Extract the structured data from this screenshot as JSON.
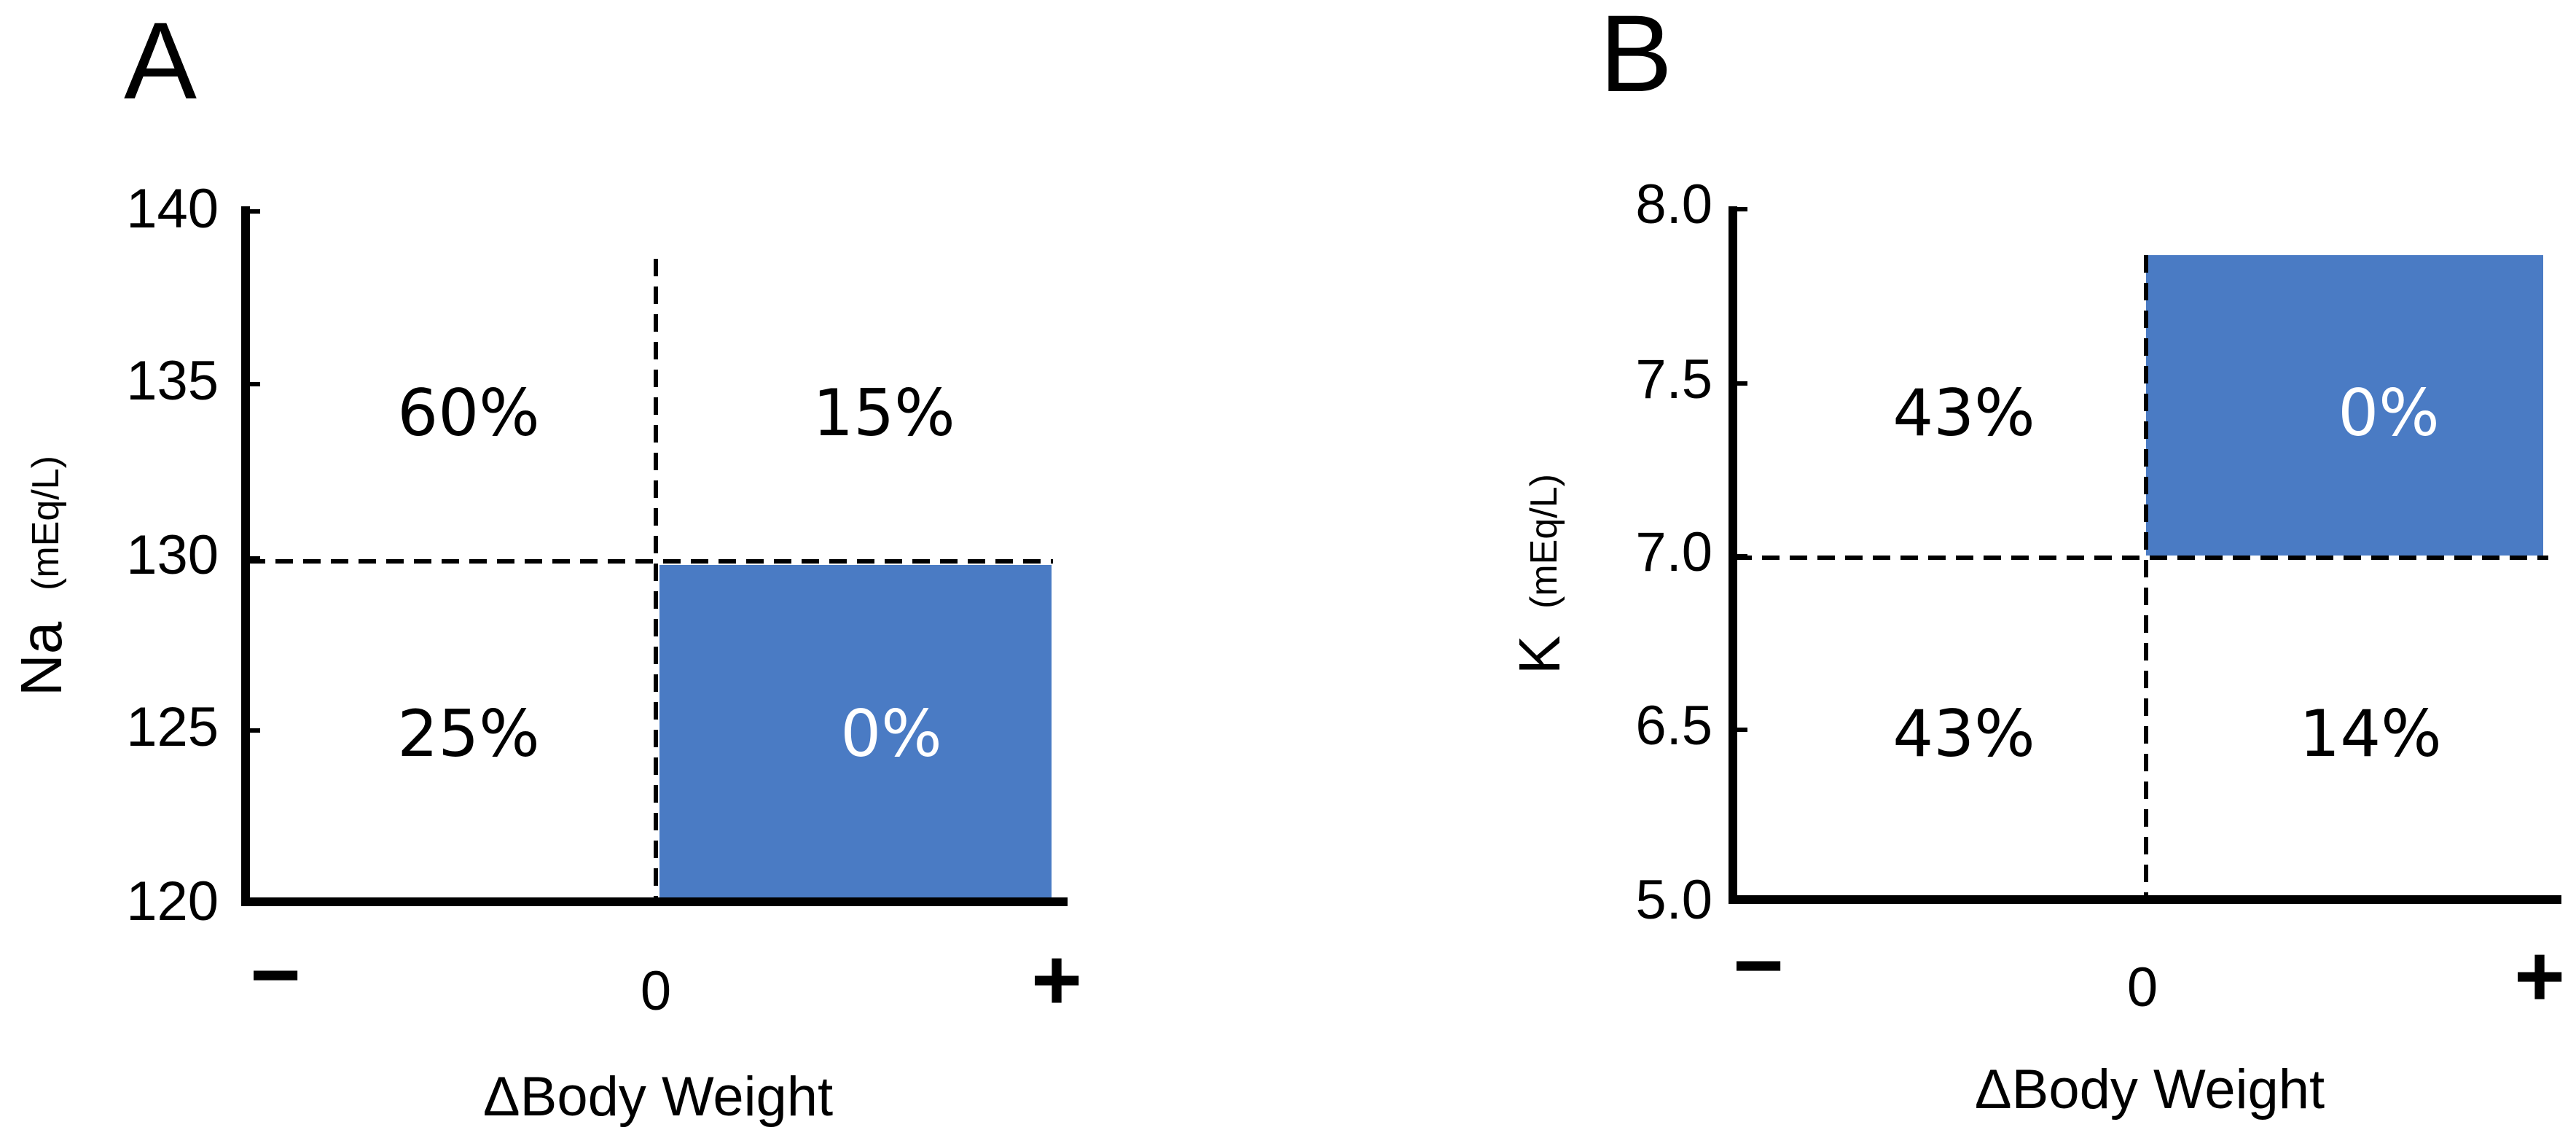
{
  "chart_data": [
    {
      "type": "quadrant",
      "panel_label": "A",
      "ylabel": "Na",
      "yunit": "(mEq/L)",
      "yticks": [
        "140",
        "135",
        "130",
        "125",
        "120"
      ],
      "xticks": [
        "−",
        "0",
        "+"
      ],
      "xlabel": "ΔBody Weight",
      "threshold": "130",
      "quadrants": [
        {
          "position": "top-left",
          "label": "60%",
          "highlight": false
        },
        {
          "position": "top-right",
          "label": "15%",
          "highlight": false
        },
        {
          "position": "bottom-left",
          "label": "25%",
          "highlight": false
        },
        {
          "position": "bottom-right",
          "label": "0%",
          "highlight": true
        }
      ],
      "highlight_color": "#4a7bc4"
    },
    {
      "type": "quadrant",
      "panel_label": "B",
      "ylabel": "K",
      "yunit": "(mEq/L)",
      "yticks": [
        "8.0",
        "7.5",
        "7.0",
        "6.5",
        "5.0"
      ],
      "xticks": [
        "−",
        "0",
        "+"
      ],
      "xlabel": "ΔBody Weight",
      "threshold": "7.0",
      "quadrants": [
        {
          "position": "top-left",
          "label": "43%",
          "highlight": false
        },
        {
          "position": "top-right",
          "label": "0%",
          "highlight": true
        },
        {
          "position": "bottom-left",
          "label": "43%",
          "highlight": false
        },
        {
          "position": "bottom-right",
          "label": "14%",
          "highlight": false
        }
      ],
      "highlight_color": "#4a7bc4"
    }
  ]
}
